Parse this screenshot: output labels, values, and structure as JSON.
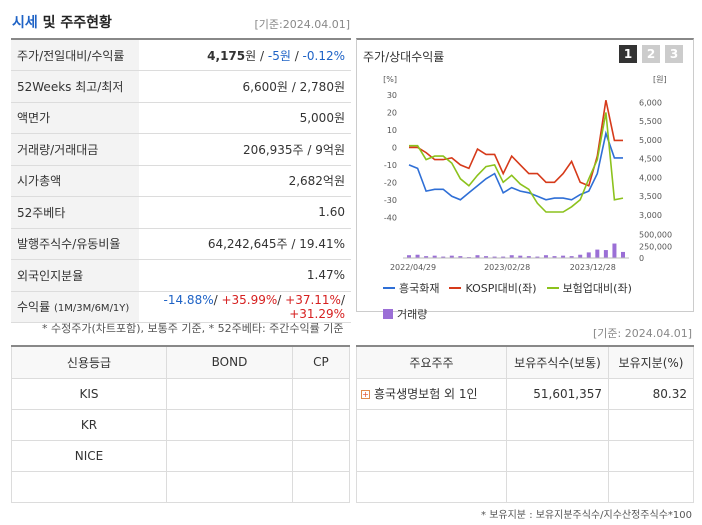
{
  "header": {
    "title_highlight": "시세",
    "title_rest": " 및 주주현황",
    "date": "[기준:2024.04.01]"
  },
  "stats": [
    {
      "label": "주가/전일대비/수익률",
      "parts": [
        {
          "text": "4,175",
          "cls": "b"
        },
        {
          "text": "원 / ",
          "cls": ""
        },
        {
          "text": "-5원",
          "cls": "neg"
        },
        {
          "text": " / ",
          "cls": ""
        },
        {
          "text": "-0.12%",
          "cls": "neg"
        }
      ]
    },
    {
      "label": "52Weeks 최고/최저",
      "value": "6,600원 / 2,780원"
    },
    {
      "label": "액면가",
      "value": "5,000원"
    },
    {
      "label": "거래량/거래대금",
      "value": "206,935주 / 9억원"
    },
    {
      "label": "시가총액",
      "value": "2,682억원"
    },
    {
      "label": "52주베타",
      "value": "1.60"
    },
    {
      "label": "발행주식수/유동비율",
      "value": "64,242,645주 / 19.41%"
    },
    {
      "label": "외국인지분율",
      "value": "1.47%"
    },
    {
      "label": "수익률",
      "label_small": "(1M/3M/6M/1Y)",
      "returns": [
        "-14.88%",
        "+35.99%",
        "+37.11%",
        "+31.29%"
      ]
    }
  ],
  "note_top": "* 수정주가(차트포함), 보통주 기준, * 52주베타: 주간수익률 기준",
  "chart_panel": {
    "title": "주가/상대수익률",
    "tabs": [
      "1",
      "2",
      "3"
    ]
  },
  "chart_data": {
    "type": "line",
    "left_axis": {
      "unit": "[%]",
      "ticks": [
        30,
        20,
        10,
        0,
        -10,
        -20,
        -30,
        -40
      ],
      "range": [
        -45,
        30
      ]
    },
    "right_axis": {
      "unit": "[원]",
      "ticks": [
        "6,000",
        "5,500",
        "5,000",
        "4,500",
        "4,000",
        "3,500",
        "3,000"
      ],
      "range": [
        2700,
        6200
      ]
    },
    "volume_axis": {
      "ticks": [
        "500,000",
        "250,000",
        "0"
      ],
      "range": [
        0,
        600000
      ]
    },
    "x_labels": [
      "2022/04/29",
      "2023/02/28",
      "2023/12/28"
    ],
    "series": [
      {
        "name": "흥국화재",
        "color": "#2f6fd6",
        "values": [
          -10,
          -12,
          -25,
          -24,
          -24,
          -28,
          -30,
          -26,
          -22,
          -18,
          -15,
          -26,
          -23,
          -25,
          -26,
          -28,
          -30,
          -29,
          -29,
          -30,
          -27,
          -25,
          -15,
          8,
          -6,
          -6
        ]
      },
      {
        "name": "KOSPI대비(좌)",
        "color": "#d63a1a",
        "values": [
          0,
          0,
          -3,
          -7,
          -7,
          -6,
          -10,
          -12,
          -1,
          -4,
          -4,
          -15,
          -5,
          -10,
          -15,
          -15,
          -20,
          -20,
          -15,
          -8,
          -20,
          -22,
          -5,
          27,
          4,
          4
        ]
      },
      {
        "name": "보험업대비(좌)",
        "color": "#8cc21d",
        "values": [
          1,
          1,
          -7,
          -5,
          -5,
          -9,
          -18,
          -22,
          -16,
          -11,
          -10,
          -20,
          -16,
          -21,
          -24,
          -32,
          -37,
          -37,
          -37,
          -34,
          -30,
          -18,
          -7,
          20,
          -30,
          -29
        ]
      }
    ],
    "volume": {
      "name": "거래량",
      "color": "#9b6fd6",
      "values": [
        60000,
        70000,
        40000,
        50000,
        30000,
        50000,
        40000,
        20000,
        60000,
        40000,
        30000,
        30000,
        60000,
        50000,
        40000,
        30000,
        60000,
        40000,
        50000,
        40000,
        70000,
        120000,
        180000,
        170000,
        310000,
        130000
      ]
    }
  },
  "date2": "[기준: 2024.04.01]",
  "credit": {
    "headers": [
      "신용등급",
      "BOND",
      "CP"
    ],
    "rows": [
      "KIS",
      "KR",
      "NICE",
      ""
    ]
  },
  "holders": {
    "headers": [
      "주요주주",
      "보유주식수(보통)",
      "보유지분(%)"
    ],
    "rows": [
      {
        "name": "흥국생명보험 외 1인",
        "shares": "51,601,357",
        "pct": "80.32"
      }
    ]
  },
  "note_bottom": "* 보유지분 : 보유지분주식수/지수산정주식수*100"
}
